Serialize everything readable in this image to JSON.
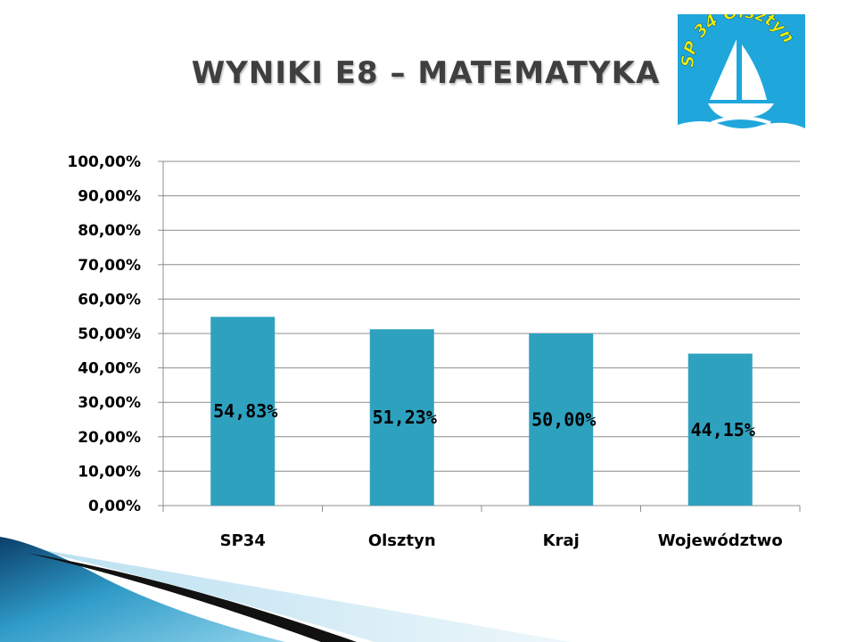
{
  "slide": {
    "title": "WYNIKI E8 – MATEMATYKA"
  },
  "logo": {
    "text": "SP 34 Olsztyn",
    "bg_color": "#1fa7dc",
    "text_color": "#f0f000"
  },
  "chart_data": {
    "type": "bar",
    "title": "",
    "xlabel": "",
    "ylabel": "",
    "categories": [
      "SP34",
      "Olsztyn",
      "Kraj",
      "Województwo"
    ],
    "values": [
      54.83,
      51.23,
      50.0,
      44.15
    ],
    "data_labels": [
      "54,83%",
      "51,23%",
      "50,00%",
      "44,15%"
    ],
    "ylim": [
      0,
      100
    ],
    "yticks": [
      0,
      10,
      20,
      30,
      40,
      50,
      60,
      70,
      80,
      90,
      100
    ],
    "ytick_labels": [
      "0,00%",
      "10,00%",
      "20,00%",
      "30,00%",
      "40,00%",
      "50,00%",
      "60,00%",
      "70,00%",
      "80,00%",
      "90,00%",
      "100,00%"
    ],
    "grid": true,
    "legend": "none",
    "bar_color": "#2ea1bf"
  }
}
